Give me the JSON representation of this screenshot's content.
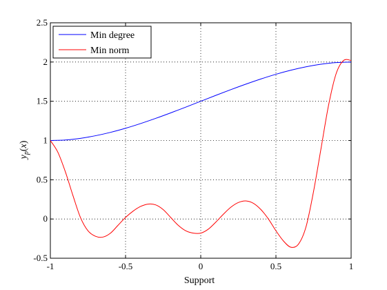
{
  "chart_data": {
    "type": "line",
    "xlabel": "Support",
    "ylabel": "y_p(x)",
    "xlim": [
      -1,
      1
    ],
    "ylim": [
      -0.5,
      2.5
    ],
    "x_ticks": [
      -1,
      -0.5,
      0,
      0.5,
      1
    ],
    "y_ticks": [
      -0.5,
      0,
      0.5,
      1,
      1.5,
      2,
      2.5
    ],
    "x_tick_labels": [
      "-1",
      "-0.5",
      "0",
      "0.5",
      "1"
    ],
    "y_tick_labels": [
      "-0.5",
      "0",
      "0.5",
      "1",
      "1.5",
      "2",
      "2.5"
    ],
    "grid": "dotted",
    "legend_position": "top-left",
    "series": [
      {
        "name": "Min degree",
        "color": "#0000ff",
        "x": [
          -1,
          -0.9,
          -0.8,
          -0.7,
          -0.6,
          -0.5,
          -0.4,
          -0.3,
          -0.2,
          -0.1,
          0,
          0.1,
          0.2,
          0.3,
          0.4,
          0.5,
          0.6,
          0.7,
          0.8,
          0.9,
          1
        ],
        "y": [
          1.0,
          1.007,
          1.028,
          1.061,
          1.104,
          1.156,
          1.216,
          1.282,
          1.352,
          1.425,
          1.5,
          1.575,
          1.648,
          1.718,
          1.784,
          1.844,
          1.896,
          1.939,
          1.972,
          1.993,
          2.0
        ]
      },
      {
        "name": "Min norm",
        "color": "#ff0000",
        "x": [
          -1,
          -0.95,
          -0.9,
          -0.85,
          -0.8,
          -0.75,
          -0.7,
          -0.65,
          -0.6,
          -0.55,
          -0.5,
          -0.45,
          -0.4,
          -0.35,
          -0.3,
          -0.25,
          -0.2,
          -0.15,
          -0.1,
          -0.05,
          0,
          0.05,
          0.1,
          0.15,
          0.2,
          0.25,
          0.3,
          0.35,
          0.4,
          0.45,
          0.5,
          0.55,
          0.6,
          0.65,
          0.7,
          0.75,
          0.8,
          0.85,
          0.9,
          0.95,
          1
        ],
        "y": [
          1.0,
          0.85,
          0.6,
          0.3,
          0.02,
          -0.15,
          -0.22,
          -0.23,
          -0.18,
          -0.08,
          0.02,
          0.1,
          0.16,
          0.19,
          0.18,
          0.12,
          0.02,
          -0.08,
          -0.15,
          -0.18,
          -0.18,
          -0.13,
          -0.04,
          0.06,
          0.15,
          0.21,
          0.23,
          0.2,
          0.12,
          0.0,
          -0.15,
          -0.28,
          -0.36,
          -0.32,
          -0.1,
          0.35,
          0.9,
          1.45,
          1.85,
          2.02,
          2.02
        ]
      }
    ]
  }
}
